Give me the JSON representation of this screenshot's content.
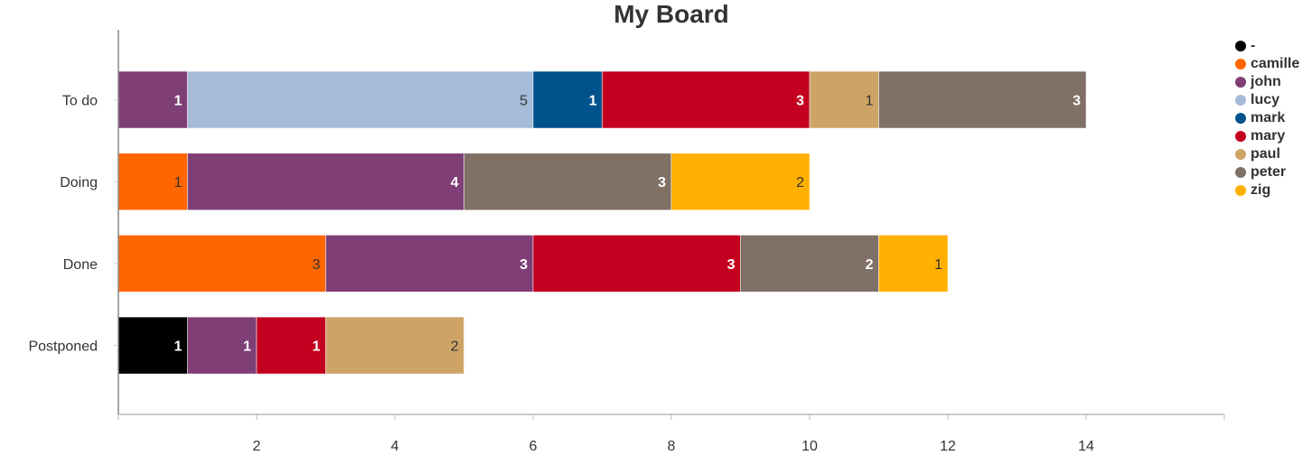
{
  "chart_data": {
    "type": "bar",
    "orientation": "horizontal",
    "stacked": true,
    "title": "My Board",
    "xlabel": "",
    "ylabel": "",
    "xlim": [
      0,
      16
    ],
    "xticks": [
      2,
      4,
      6,
      8,
      10,
      12,
      14
    ],
    "categories": [
      "To do",
      "Doing",
      "Done",
      "Postponed"
    ],
    "legend_position": "top-right",
    "series": [
      {
        "name": "-",
        "color": "#000000",
        "values": [
          0,
          0,
          0,
          1
        ]
      },
      {
        "name": "camille",
        "color": "#ff6600",
        "values": [
          0,
          1,
          3,
          0
        ]
      },
      {
        "name": "john",
        "color": "#7f3f76",
        "values": [
          1,
          4,
          3,
          1
        ]
      },
      {
        "name": "lucy",
        "color": "#a5bbd8",
        "values": [
          5,
          0,
          0,
          0
        ]
      },
      {
        "name": "mark",
        "color": "#00528c",
        "values": [
          1,
          0,
          0,
          0
        ]
      },
      {
        "name": "mary",
        "color": "#c3001f",
        "values": [
          3,
          0,
          3,
          1
        ]
      },
      {
        "name": "paul",
        "color": "#cda466",
        "values": [
          1,
          0,
          0,
          2
        ]
      },
      {
        "name": "peter",
        "color": "#807066",
        "values": [
          3,
          3,
          2,
          0
        ]
      },
      {
        "name": "zig",
        "color": "#ffb000",
        "values": [
          0,
          2,
          1,
          0
        ]
      }
    ]
  }
}
